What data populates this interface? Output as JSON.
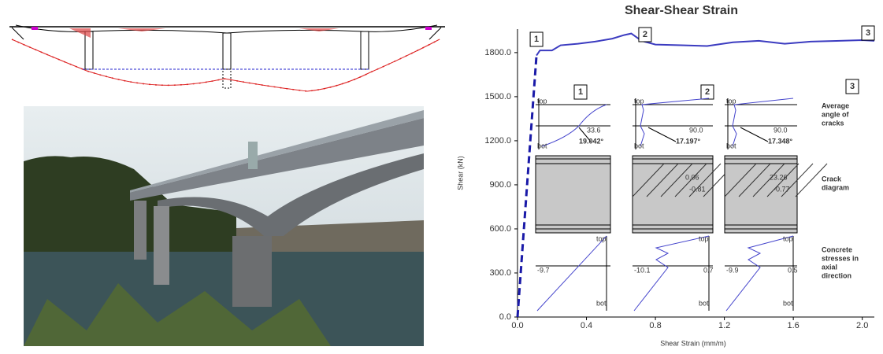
{
  "chart_data": {
    "type": "line",
    "title": "Shear-Shear Strain",
    "x_label": "Shear Strain (mm/m)",
    "y_label": "Shear (kN)",
    "xlim": [
      0,
      2.07
    ],
    "ylim": [
      0,
      1960
    ],
    "xticks": [
      {
        "value": 0,
        "label": "0.0"
      },
      {
        "value": 0.4,
        "label": "0.4"
      },
      {
        "value": 0.8,
        "label": "0.8"
      },
      {
        "value": 1.2,
        "label": "1.2"
      },
      {
        "value": 1.6,
        "label": "1.6"
      },
      {
        "value": 2.0,
        "label": "2.0"
      }
    ],
    "yticks": [
      {
        "value": 0,
        "label": "0.0"
      },
      {
        "value": 300,
        "label": "300.0"
      },
      {
        "value": 600,
        "label": "600.0"
      },
      {
        "value": 900,
        "label": "900.0"
      },
      {
        "value": 1200,
        "label": "1200.0"
      },
      {
        "value": 1500,
        "label": "1500.0"
      },
      {
        "value": 1800,
        "label": "1800.0"
      }
    ],
    "series": [
      {
        "color": "#1a1aa8",
        "dashed": true,
        "x": [
          0,
          0.11
        ],
        "values": [
          0,
          1780
        ]
      },
      {
        "color": "#3b3bc0",
        "dashed": false,
        "x": [
          0.11,
          0.13,
          0.2,
          0.25,
          0.35,
          0.45,
          0.55,
          0.62,
          0.66,
          0.72,
          0.8,
          0.95,
          1.1,
          1.25,
          1.4,
          1.55,
          1.7,
          1.85,
          2.0,
          2.07
        ],
        "values": [
          1780,
          1815,
          1815,
          1850,
          1860,
          1875,
          1895,
          1920,
          1930,
          1880,
          1855,
          1850,
          1845,
          1870,
          1880,
          1860,
          1875,
          1880,
          1885,
          1880
        ]
      }
    ],
    "annotations": [
      {
        "text": "1",
        "x": 0.11
      },
      {
        "text": "2",
        "x": 0.74
      },
      {
        "text": "3",
        "x": 2.07
      }
    ]
  },
  "insets": [
    {
      "number": "1",
      "angle": {
        "top": "top",
        "bot": "bot",
        "reference": "33.6",
        "value": "19.042°"
      },
      "stress": {
        "top": "top",
        "bot": "bot",
        "left": "-9.7"
      }
    },
    {
      "number": "2",
      "angle": {
        "top": "top",
        "bot": "bot",
        "reference": "90.0",
        "value": "17.197°"
      },
      "crack": {
        "upper": "0.06",
        "lower": "-0.81"
      },
      "stress": {
        "top": "top",
        "bot": "bot",
        "left": "-10.1",
        "right": "0.7"
      }
    },
    {
      "number": "3",
      "angle": {
        "top": "top",
        "bot": "bot",
        "reference": "90.0",
        "value": "17.348°"
      },
      "crack": {
        "upper": "23.26",
        "lower": "-0.77"
      },
      "stress": {
        "top": "top",
        "bot": "bot",
        "left": "-9.9",
        "right": "0.5"
      }
    }
  ],
  "row_labels": [
    [
      "Average",
      "angle of",
      "cracks"
    ],
    [
      "Crack",
      "diagram"
    ],
    [
      "Concrete",
      "stresses in",
      "axial",
      "direction"
    ]
  ]
}
